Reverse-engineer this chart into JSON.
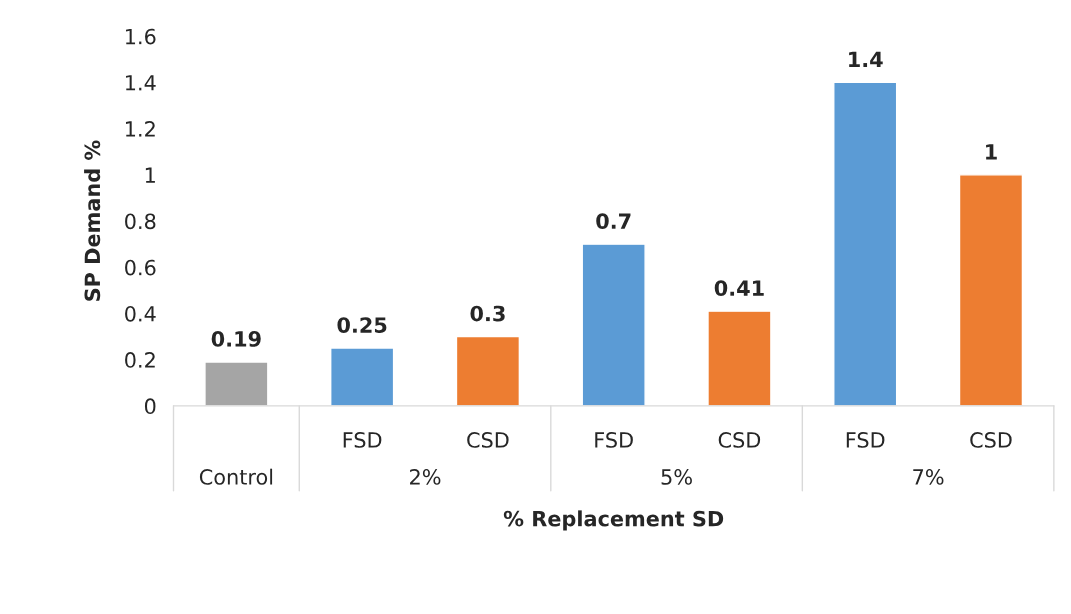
{
  "chart_data": {
    "type": "bar",
    "xlabel": "% Replacement SD",
    "ylabel": "SP Demand %",
    "categories": [
      null,
      "FSD",
      "CSD",
      "FSD",
      "CSD",
      "FSD",
      "CSD"
    ],
    "values": [
      0.19,
      0.25,
      0.3,
      0.7,
      0.41,
      1.4,
      1
    ],
    "colors": [
      "#a5a5a5",
      "#5b9bd5",
      "#ed7d31",
      "#5b9bd5",
      "#ed7d31",
      "#5b9bd5",
      "#ed7d31"
    ],
    "annotations": [
      "Control",
      "2%",
      "5%",
      "7%"
    ],
    "ylim": [
      0,
      1.6
    ],
    "yticks": [
      0,
      0.2,
      0.4,
      0.6,
      0.8,
      1,
      1.2,
      1.4,
      1.6
    ],
    "data_labels": true,
    "grid": false,
    "legend": false
  }
}
